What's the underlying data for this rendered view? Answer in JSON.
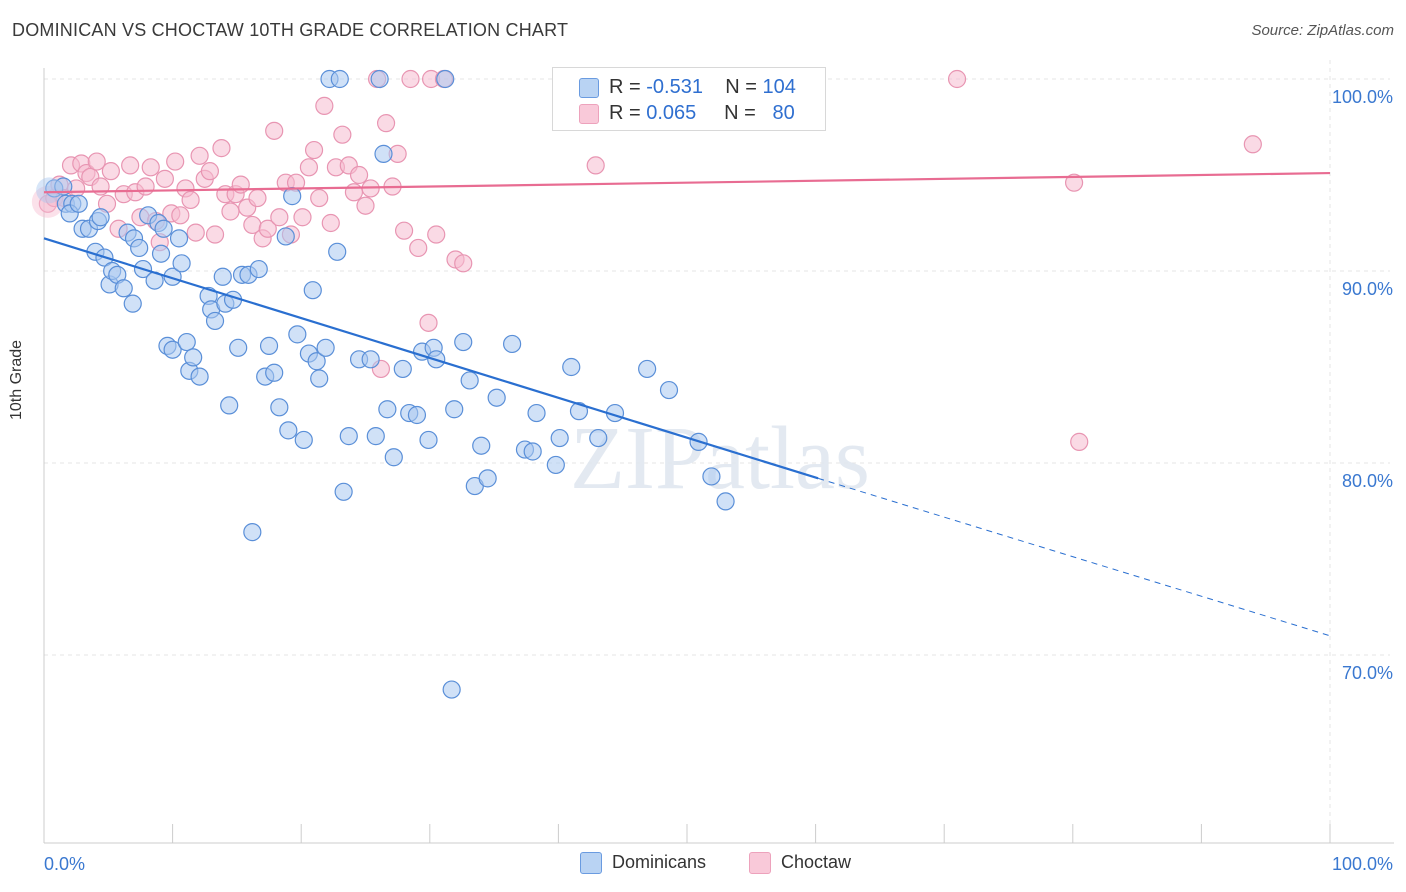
{
  "title": "DOMINICAN VS CHOCTAW 10TH GRADE CORRELATION CHART",
  "source": "Source: ZipAtlas.com",
  "y_axis_label": "10th Grade",
  "x_tick_left": "0.0%",
  "x_tick_right": "100.0%",
  "y_ticks": [
    "100.0%",
    "90.0%",
    "80.0%",
    "70.0%"
  ],
  "watermark": "ZIPatlas",
  "legend": {
    "blue": {
      "r_label": "R =",
      "r_value": "-0.531",
      "n_label": "N =",
      "n_value": "104"
    },
    "pink": {
      "r_label": "R =",
      "r_value": "0.065",
      "n_label": "N =",
      "n_value": "80"
    }
  },
  "colors": {
    "blue_fill": "#a9c8f0",
    "blue_stroke": "#5a8fd8",
    "blue_line": "#2a6fd0",
    "pink_fill": "#f6bcd0",
    "pink_stroke": "#e895b2",
    "pink_line": "#e86c92",
    "tick_text": "#3a78d0",
    "grid": "#e6e6e6"
  },
  "chart_data": {
    "type": "scatter",
    "xlim": [
      0,
      100
    ],
    "ylim": [
      60.5,
      101.0
    ],
    "x_ticks": [
      0,
      100
    ],
    "y_ticks": [
      100,
      90,
      80,
      70
    ],
    "grid": true,
    "legend_position": "top-center",
    "series": [
      {
        "name": "Dominicans",
        "color": "#5a8fd8",
        "trend": {
          "x_start": 0,
          "y_start": 91.7,
          "x_solid_end": 60.2,
          "y_solid_end": 79.2,
          "x_end": 100,
          "y_end": 71.0
        },
        "points": [
          [
            0.8,
            94.3
          ],
          [
            1.5,
            94.4
          ],
          [
            1.7,
            93.5
          ],
          [
            2.2,
            93.5
          ],
          [
            2.0,
            93.0
          ],
          [
            2.7,
            93.5
          ],
          [
            3.0,
            92.2
          ],
          [
            3.5,
            92.2
          ],
          [
            4.0,
            91.0
          ],
          [
            4.2,
            92.6
          ],
          [
            4.4,
            92.8
          ],
          [
            4.7,
            90.7
          ],
          [
            5.1,
            89.3
          ],
          [
            5.3,
            90.0
          ],
          [
            5.7,
            89.8
          ],
          [
            6.2,
            89.1
          ],
          [
            6.5,
            92.0
          ],
          [
            6.9,
            88.3
          ],
          [
            7.0,
            91.7
          ],
          [
            7.4,
            91.2
          ],
          [
            7.7,
            90.1
          ],
          [
            8.6,
            89.5
          ],
          [
            8.1,
            92.9
          ],
          [
            8.9,
            92.5
          ],
          [
            9.3,
            92.2
          ],
          [
            9.1,
            90.9
          ],
          [
            9.6,
            86.1
          ],
          [
            10.0,
            85.9
          ],
          [
            10.0,
            89.7
          ],
          [
            10.5,
            91.7
          ],
          [
            10.7,
            90.4
          ],
          [
            11.1,
            86.3
          ],
          [
            11.3,
            84.8
          ],
          [
            11.6,
            85.5
          ],
          [
            12.1,
            84.5
          ],
          [
            12.8,
            88.7
          ],
          [
            13.0,
            88.0
          ],
          [
            13.3,
            87.4
          ],
          [
            13.9,
            89.7
          ],
          [
            14.1,
            88.3
          ],
          [
            14.4,
            83.0
          ],
          [
            14.7,
            88.5
          ],
          [
            15.1,
            86.0
          ],
          [
            15.4,
            89.8
          ],
          [
            15.9,
            89.8
          ],
          [
            16.2,
            76.4
          ],
          [
            16.7,
            90.1
          ],
          [
            17.2,
            84.5
          ],
          [
            17.5,
            86.1
          ],
          [
            17.9,
            84.7
          ],
          [
            18.3,
            82.9
          ],
          [
            18.8,
            91.8
          ],
          [
            19.0,
            81.7
          ],
          [
            19.3,
            93.9
          ],
          [
            19.7,
            86.7
          ],
          [
            20.2,
            81.2
          ],
          [
            20.6,
            85.7
          ],
          [
            20.9,
            89.0
          ],
          [
            21.2,
            85.3
          ],
          [
            21.4,
            84.4
          ],
          [
            21.9,
            86.0
          ],
          [
            22.2,
            100.0
          ],
          [
            22.8,
            91.0
          ],
          [
            23.3,
            78.5
          ],
          [
            23.0,
            100.0
          ],
          [
            23.7,
            81.4
          ],
          [
            24.5,
            85.4
          ],
          [
            25.4,
            85.4
          ],
          [
            25.8,
            81.4
          ],
          [
            26.1,
            100.0
          ],
          [
            26.4,
            96.1
          ],
          [
            26.7,
            82.8
          ],
          [
            27.2,
            80.3
          ],
          [
            27.9,
            84.9
          ],
          [
            28.4,
            82.6
          ],
          [
            29.0,
            82.5
          ],
          [
            29.4,
            85.8
          ],
          [
            29.9,
            81.2
          ],
          [
            30.3,
            86.0
          ],
          [
            30.5,
            85.4
          ],
          [
            31.2,
            100.0
          ],
          [
            31.7,
            68.2
          ],
          [
            31.9,
            82.8
          ],
          [
            32.6,
            86.3
          ],
          [
            33.1,
            84.3
          ],
          [
            33.5,
            78.8
          ],
          [
            34.0,
            80.9
          ],
          [
            34.5,
            79.2
          ],
          [
            35.2,
            83.4
          ],
          [
            36.4,
            86.2
          ],
          [
            37.4,
            80.7
          ],
          [
            38.0,
            80.6
          ],
          [
            38.3,
            82.6
          ],
          [
            39.8,
            79.9
          ],
          [
            40.1,
            81.3
          ],
          [
            41.0,
            85.0
          ],
          [
            41.6,
            82.7
          ],
          [
            43.1,
            81.3
          ],
          [
            44.4,
            82.6
          ],
          [
            46.9,
            84.9
          ],
          [
            48.6,
            83.8
          ],
          [
            50.9,
            81.1
          ],
          [
            51.9,
            79.3
          ],
          [
            53.0,
            78.0
          ]
        ]
      },
      {
        "name": "Choctaw",
        "color": "#e895b2",
        "trend": {
          "x_start": 0,
          "y_start": 94.1,
          "x_end": 100,
          "y_end": 95.1
        },
        "points": [
          [
            0.3,
            93.5
          ],
          [
            0.8,
            93.8
          ],
          [
            1.2,
            94.5
          ],
          [
            1.6,
            93.8
          ],
          [
            2.1,
            95.5
          ],
          [
            2.5,
            94.3
          ],
          [
            2.9,
            95.6
          ],
          [
            3.3,
            95.1
          ],
          [
            3.6,
            94.9
          ],
          [
            4.1,
            95.7
          ],
          [
            4.4,
            94.4
          ],
          [
            4.9,
            93.5
          ],
          [
            5.2,
            95.2
          ],
          [
            5.8,
            92.2
          ],
          [
            6.2,
            94.0
          ],
          [
            6.7,
            95.5
          ],
          [
            7.1,
            94.1
          ],
          [
            7.5,
            92.8
          ],
          [
            7.9,
            94.4
          ],
          [
            8.3,
            95.4
          ],
          [
            8.7,
            92.6
          ],
          [
            9.0,
            91.5
          ],
          [
            9.4,
            94.8
          ],
          [
            9.9,
            93.0
          ],
          [
            10.2,
            95.7
          ],
          [
            10.6,
            92.9
          ],
          [
            11.0,
            94.3
          ],
          [
            11.4,
            93.7
          ],
          [
            11.8,
            92.0
          ],
          [
            12.1,
            96.0
          ],
          [
            12.5,
            94.8
          ],
          [
            12.9,
            95.2
          ],
          [
            13.3,
            91.9
          ],
          [
            13.8,
            96.4
          ],
          [
            14.1,
            94.0
          ],
          [
            14.5,
            93.1
          ],
          [
            14.9,
            94.0
          ],
          [
            15.3,
            94.5
          ],
          [
            15.8,
            93.3
          ],
          [
            16.2,
            92.4
          ],
          [
            16.6,
            93.8
          ],
          [
            17.0,
            91.7
          ],
          [
            17.4,
            92.2
          ],
          [
            17.9,
            97.3
          ],
          [
            18.3,
            92.8
          ],
          [
            18.8,
            94.6
          ],
          [
            19.2,
            91.9
          ],
          [
            19.6,
            94.6
          ],
          [
            20.1,
            92.8
          ],
          [
            20.6,
            95.4
          ],
          [
            21.0,
            96.3
          ],
          [
            21.4,
            93.8
          ],
          [
            21.8,
            98.6
          ],
          [
            22.3,
            92.5
          ],
          [
            22.7,
            95.4
          ],
          [
            23.2,
            97.1
          ],
          [
            23.7,
            95.5
          ],
          [
            24.1,
            94.1
          ],
          [
            24.5,
            95.0
          ],
          [
            25.0,
            93.4
          ],
          [
            25.4,
            94.3
          ],
          [
            25.9,
            100.0
          ],
          [
            26.2,
            84.9
          ],
          [
            26.6,
            97.7
          ],
          [
            27.1,
            94.4
          ],
          [
            27.5,
            96.1
          ],
          [
            28.0,
            92.1
          ],
          [
            28.5,
            100.0
          ],
          [
            29.1,
            91.2
          ],
          [
            29.9,
            87.3
          ],
          [
            30.1,
            100.0
          ],
          [
            30.5,
            91.9
          ],
          [
            31.1,
            100.0
          ],
          [
            32.0,
            90.6
          ],
          [
            32.6,
            90.4
          ],
          [
            42.9,
            95.5
          ],
          [
            71.0,
            100.0
          ],
          [
            80.1,
            94.6
          ],
          [
            94.0,
            96.6
          ],
          [
            80.5,
            81.1
          ]
        ]
      }
    ]
  }
}
